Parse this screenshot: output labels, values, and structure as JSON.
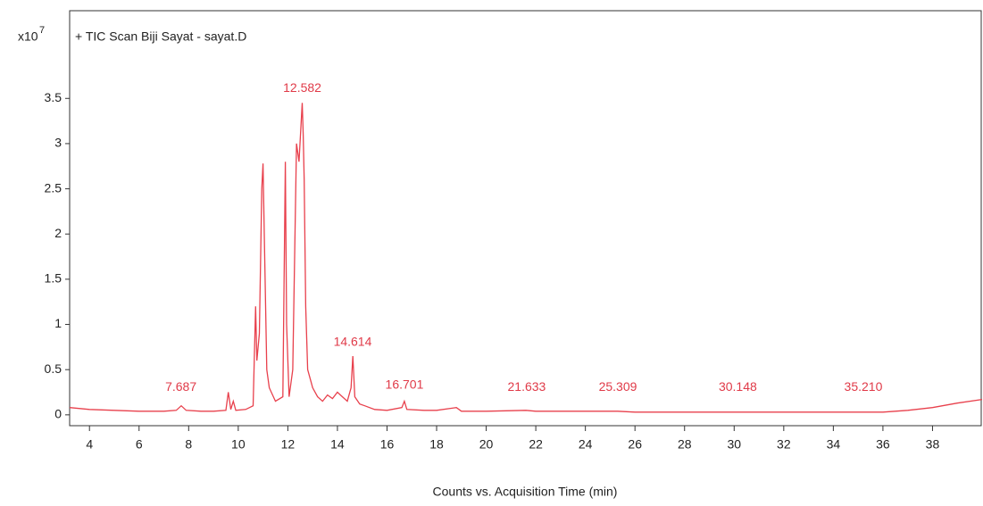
{
  "chart_data": {
    "type": "line",
    "title": "+ TIC Scan Biji Sayat - sayat.D",
    "y_scale_label": "x10",
    "y_scale_exponent": "7",
    "xlabel": "Counts vs. Acquisition Time (min)",
    "color": "#e8404c",
    "xlim": [
      3.2,
      40
    ],
    "ylim": [
      -0.12,
      4.47
    ],
    "xticks": [
      4,
      6,
      8,
      10,
      12,
      14,
      16,
      18,
      20,
      22,
      24,
      26,
      28,
      30,
      32,
      34,
      36,
      38
    ],
    "yticks": [
      0,
      0.5,
      1,
      1.5,
      2,
      2.5,
      3,
      3.5
    ],
    "x": [
      3.2,
      4,
      5,
      6,
      7,
      7.5,
      7.7,
      7.9,
      8.5,
      9,
      9.5,
      9.6,
      9.7,
      9.8,
      9.9,
      10.3,
      10.6,
      10.7,
      10.75,
      10.85,
      10.95,
      11.0,
      11.05,
      11.15,
      11.25,
      11.5,
      11.8,
      11.9,
      11.95,
      12.05,
      12.2,
      12.35,
      12.45,
      12.58,
      12.62,
      12.66,
      12.72,
      12.8,
      12.9,
      13.0,
      13.2,
      13.4,
      13.6,
      13.8,
      14.0,
      14.2,
      14.4,
      14.55,
      14.62,
      14.7,
      14.9,
      15.1,
      15.5,
      16,
      16.6,
      16.7,
      16.8,
      17.5,
      18,
      18.8,
      19,
      20,
      21.6,
      22,
      25.3,
      26,
      30,
      32,
      35.2,
      36,
      37,
      38,
      39,
      40
    ],
    "values": [
      0.08,
      0.06,
      0.05,
      0.04,
      0.04,
      0.05,
      0.1,
      0.05,
      0.04,
      0.04,
      0.05,
      0.25,
      0.06,
      0.15,
      0.05,
      0.06,
      0.1,
      1.2,
      0.6,
      0.9,
      2.5,
      2.78,
      2.0,
      0.5,
      0.3,
      0.15,
      0.2,
      2.8,
      1.0,
      0.2,
      0.5,
      3.0,
      2.8,
      3.45,
      3.1,
      2.6,
      1.2,
      0.5,
      0.4,
      0.3,
      0.2,
      0.15,
      0.22,
      0.18,
      0.25,
      0.2,
      0.15,
      0.3,
      0.65,
      0.2,
      0.12,
      0.1,
      0.06,
      0.05,
      0.08,
      0.15,
      0.06,
      0.05,
      0.05,
      0.08,
      0.04,
      0.04,
      0.05,
      0.04,
      0.04,
      0.03,
      0.03,
      0.03,
      0.03,
      0.03,
      0.05,
      0.08,
      0.13,
      0.17
    ],
    "peak_x": [
      7.687,
      12.582,
      14.614,
      16.701,
      21.633,
      25.309,
      30.148,
      35.21
    ],
    "peak_labels": [
      "7.687",
      "12.582",
      "14.614",
      "16.701",
      "21.633",
      "25.309",
      "30.148",
      "35.210"
    ]
  }
}
